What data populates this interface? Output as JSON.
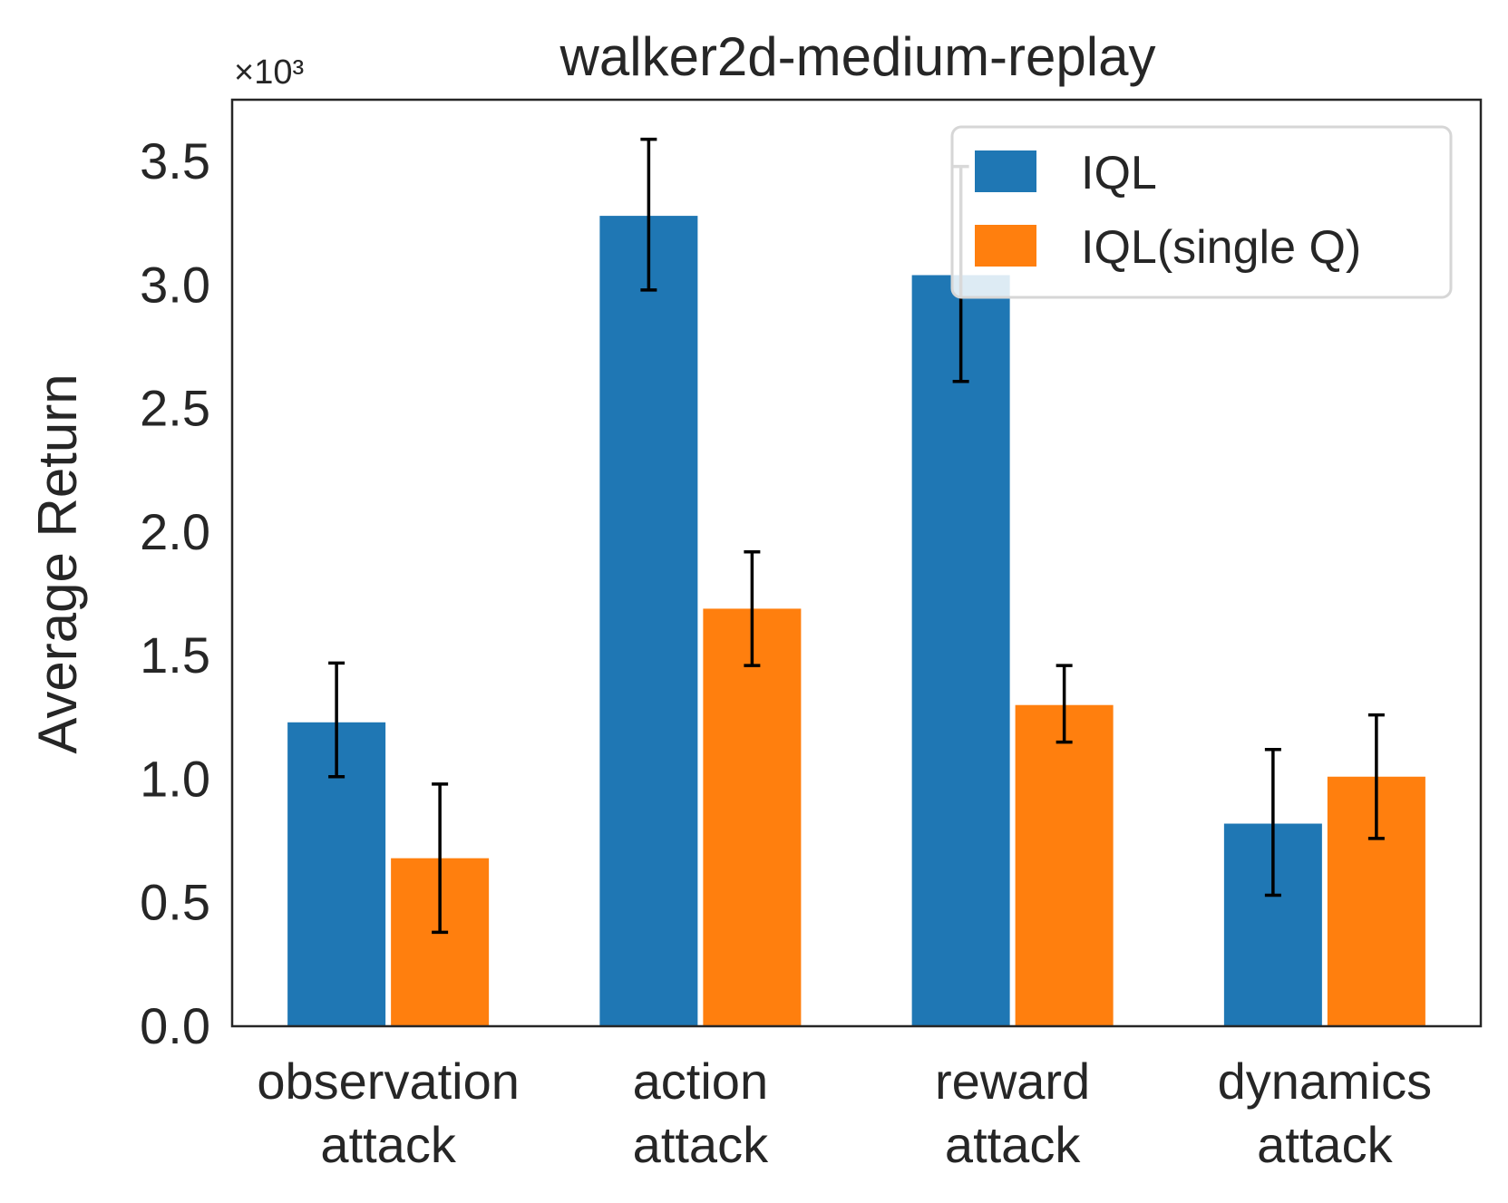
{
  "chart_data": {
    "type": "bar",
    "title": "walker2d-medium-replay",
    "ylabel": "Average Return",
    "xlabel": "",
    "y_scale_note": "×10³",
    "ylim": [
      0,
      3.75
    ],
    "yticks": [
      "0.0",
      "0.5",
      "1.0",
      "1.5",
      "2.0",
      "2.5",
      "3.0",
      "3.5"
    ],
    "categories": [
      [
        "observation",
        "attack"
      ],
      [
        "action",
        "attack"
      ],
      [
        "reward",
        "attack"
      ],
      [
        "dynamics",
        "attack"
      ]
    ],
    "series": [
      {
        "name": "IQL",
        "color": "#1f77b4",
        "values": [
          1.23,
          3.28,
          3.04,
          0.82
        ],
        "err_low": [
          1.01,
          2.98,
          2.61,
          0.53
        ],
        "err_high": [
          1.47,
          3.59,
          3.48,
          1.12
        ]
      },
      {
        "name": "IQL(single Q)",
        "color": "#ff7f0e",
        "values": [
          0.68,
          1.69,
          1.3,
          1.01
        ],
        "err_low": [
          0.38,
          1.46,
          1.15,
          0.76
        ],
        "err_high": [
          0.98,
          1.92,
          1.46,
          1.26
        ]
      }
    ],
    "grid": false,
    "legend_position": "top-right"
  }
}
